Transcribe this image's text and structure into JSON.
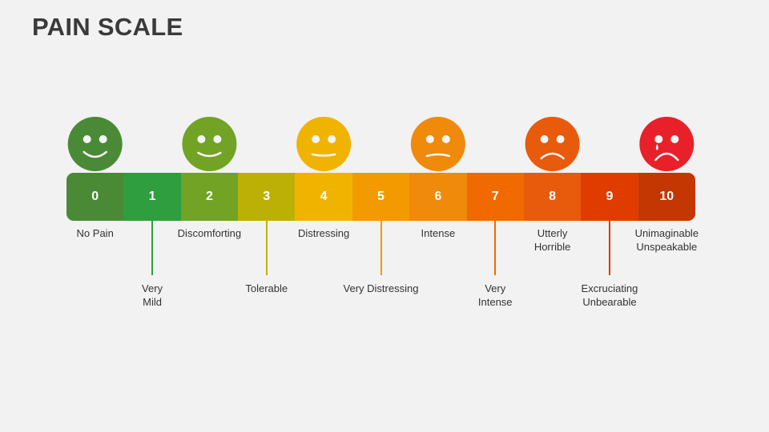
{
  "title": "PAIN SCALE",
  "scale": [
    {
      "n": "0",
      "color": "#4a8a36"
    },
    {
      "n": "1",
      "color": "#2e9e3e"
    },
    {
      "n": "2",
      "color": "#72a325"
    },
    {
      "n": "3",
      "color": "#bdb004"
    },
    {
      "n": "4",
      "color": "#f0b400"
    },
    {
      "n": "5",
      "color": "#f29a00"
    },
    {
      "n": "6",
      "color": "#f08a0a"
    },
    {
      "n": "7",
      "color": "#f06a00"
    },
    {
      "n": "8",
      "color": "#e85a0c"
    },
    {
      "n": "9",
      "color": "#e03c00"
    },
    {
      "n": "10",
      "color": "#c43602"
    }
  ],
  "faces": [
    {
      "icon": "happy-face-icon",
      "color": "#4a8a36"
    },
    {
      "icon": "smiling-face-icon",
      "color": "#72a325"
    },
    {
      "icon": "neutral-face-icon",
      "color": "#f0b400"
    },
    {
      "icon": "uneasy-face-icon",
      "color": "#f08a0a"
    },
    {
      "icon": "sad-face-icon",
      "color": "#e85a0c"
    },
    {
      "icon": "crying-face-icon",
      "color": "#e8202a"
    }
  ],
  "labels": [
    {
      "n": "0",
      "line1": "No Pain",
      "line2": ""
    },
    {
      "n": "1",
      "line1": "Very",
      "line2": "Mild"
    },
    {
      "n": "2",
      "line1": "Discomforting",
      "line2": ""
    },
    {
      "n": "3",
      "line1": "Tolerable",
      "line2": ""
    },
    {
      "n": "4",
      "line1": "Distressing",
      "line2": ""
    },
    {
      "n": "5",
      "line1": "Very Distressing",
      "line2": ""
    },
    {
      "n": "6",
      "line1": "Intense",
      "line2": ""
    },
    {
      "n": "7",
      "line1": "Very",
      "line2": "Intense"
    },
    {
      "n": "8",
      "line1": "Utterly",
      "line2": "Horrible"
    },
    {
      "n": "9",
      "line1": "Excruciating",
      "line2": "Unbearable"
    },
    {
      "n": "10",
      "line1": "Unimaginable",
      "line2": "Unspeakable"
    }
  ]
}
